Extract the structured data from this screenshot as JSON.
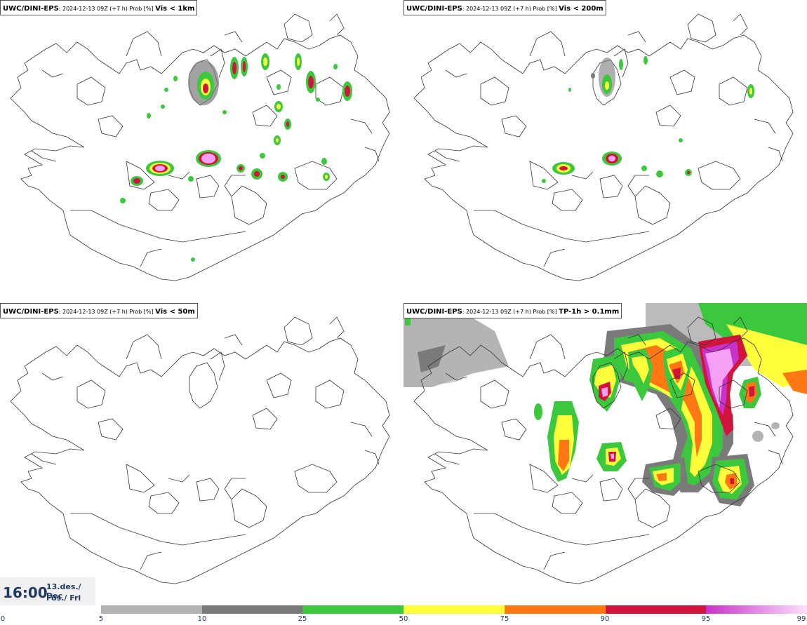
{
  "panels": [
    {
      "model": "UWC/DINI-EPS",
      "meta": ": 2024-12-13 09Z (+7 h) Prob [%] ",
      "variable": "Vis < 1km"
    },
    {
      "model": "UWC/DINI-EPS",
      "meta": ": 2024-12-13 09Z (+7 h) Prob [%] ",
      "variable": "Vis < 200m"
    },
    {
      "model": "UWC/DINI-EPS",
      "meta": ": 2024-12-13 09Z (+7 h) Prob [%] ",
      "variable": "Vis < 50m"
    },
    {
      "model": "UWC/DINI-EPS",
      "meta": ": 2024-12-13 09Z (+7 h) Prob [%] ",
      "variable": "TP-1h > 0.1mm"
    }
  ],
  "valid_time": {
    "time": "16:00",
    "date": "13.des./ Dec",
    "day": "Fös./ Fri"
  },
  "legend": {
    "ticks": [
      "0",
      "5",
      "10",
      "25",
      "50",
      "75",
      "90",
      "95",
      "99"
    ],
    "colors": [
      "#b4b4b4",
      "#7a7a7a",
      "#3cc83c",
      "#ffff3c",
      "#ff7814",
      "#d2143c",
      "#c832c8"
    ]
  }
}
